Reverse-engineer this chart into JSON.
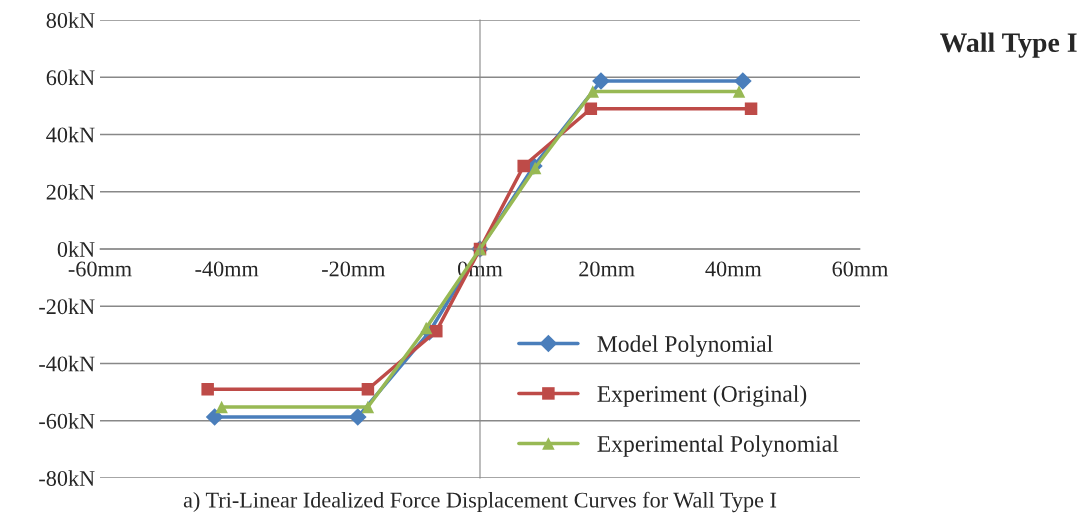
{
  "chart_data": {
    "type": "line",
    "title": "Wall Type I",
    "xlabel": "a) Tri-Linear Idealized Force Displacement Curves for Wall Type I",
    "series": [
      {
        "name": "Model Polynomial",
        "color": "#4a7ebb",
        "marker": "diamond",
        "x": [
          -41.9,
          -19.3,
          -8,
          0,
          8.5,
          19.1,
          41.5
        ],
        "values": [
          -58.7,
          -58.7,
          -29,
          0,
          29,
          58.7,
          58.7
        ]
      },
      {
        "name": "Experiment (Original)",
        "color": "#be4b48",
        "marker": "square",
        "x": [
          -43,
          -17.7,
          -6.9,
          0,
          6.9,
          17.5,
          42.8
        ],
        "values": [
          -49,
          -49,
          -28.7,
          0,
          29,
          49,
          49
        ]
      },
      {
        "name": "Experimental Polynomial",
        "color": "#98b954",
        "marker": "triangle",
        "x": [
          -40.8,
          -17.7,
          -8.5,
          0,
          8.7,
          17.8,
          40.9
        ],
        "values": [
          -55.2,
          -55.2,
          -27.6,
          0,
          28.3,
          55,
          55
        ]
      }
    ],
    "xlim": [
      -60,
      60
    ],
    "ylim": [
      -80,
      80
    ],
    "xticks": [
      {
        "value": -60,
        "label": "-60mm"
      },
      {
        "value": -40,
        "label": "-40mm"
      },
      {
        "value": -20,
        "label": "-20mm"
      },
      {
        "value": 0,
        "label": "0mm"
      },
      {
        "value": 20,
        "label": "20mm"
      },
      {
        "value": 40,
        "label": "40mm"
      },
      {
        "value": 60,
        "label": "60mm"
      }
    ],
    "yticks": [
      {
        "value": -80,
        "label": "-80kN"
      },
      {
        "value": -60,
        "label": "-60kN"
      },
      {
        "value": -40,
        "label": "-40kN"
      },
      {
        "value": -20,
        "label": "-20kN"
      },
      {
        "value": 0,
        "label": "0kN"
      },
      {
        "value": 20,
        "label": "20kN"
      },
      {
        "value": 40,
        "label": "40kN"
      },
      {
        "value": 60,
        "label": "60kN"
      },
      {
        "value": 80,
        "label": "80kN"
      }
    ],
    "grid": "y",
    "legend": "bottom right",
    "line_style": "solid"
  }
}
